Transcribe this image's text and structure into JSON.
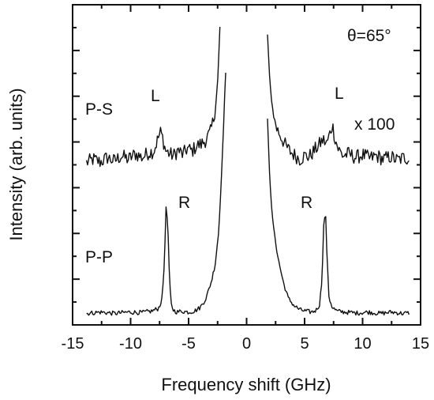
{
  "chart_data": {
    "type": "line",
    "title": "",
    "xlabel": "Frequency shift (GHz)",
    "ylabel": "Intensity (arb. units)",
    "xlim": [
      -15,
      15
    ],
    "ylim": [
      0,
      7
    ],
    "xticks": [
      -15,
      -10,
      -5,
      0,
      5,
      10,
      15
    ],
    "xtick_labels": [
      "-15",
      "-10",
      "-5",
      "0",
      "5",
      "10",
      "15"
    ],
    "grid": false,
    "legend": "none",
    "annotations": {
      "angle": "θ=65°",
      "ps_label": "P-S",
      "pp_label": "P-P",
      "scale": "x 100",
      "L_left": "L",
      "L_right": "L",
      "R_left": "R",
      "R_right": "R"
    },
    "series": [
      {
        "x": [
          -13.8,
          -13.2,
          -12.6,
          -12.0,
          -11.4,
          -10.8,
          -10.2,
          -9.6,
          -9.0,
          -8.5,
          -8.0,
          -7.8,
          -7.6,
          -7.4,
          -7.2,
          -7.0,
          -6.7,
          -6.3,
          -5.9,
          -5.5,
          -5.1,
          -4.7,
          -4.3,
          -3.9,
          -3.5,
          -3.1,
          -2.8,
          -2.5,
          -2.3
        ],
        "y": [
          3.55,
          3.62,
          3.56,
          3.66,
          3.58,
          3.7,
          3.62,
          3.74,
          3.66,
          3.76,
          3.8,
          3.95,
          4.1,
          4.22,
          4.05,
          3.82,
          3.75,
          3.7,
          3.82,
          3.72,
          3.86,
          3.8,
          3.92,
          3.95,
          4.05,
          4.22,
          4.55,
          5.25,
          6.5
        ]
      },
      {
        "x": [
          1.8,
          2.0,
          2.3,
          2.6,
          3.0,
          3.4,
          3.8,
          4.2,
          4.6,
          5.0,
          5.4,
          5.8,
          6.2,
          6.6,
          6.9,
          7.2,
          7.4,
          7.6,
          7.9,
          8.3,
          8.8,
          9.4,
          10.0,
          10.6,
          11.2,
          11.8,
          12.4,
          13.0,
          13.6,
          14.0
        ],
        "y": [
          6.35,
          5.3,
          4.6,
          4.3,
          4.1,
          3.9,
          3.78,
          3.7,
          3.62,
          3.7,
          3.68,
          3.8,
          3.92,
          4.05,
          3.95,
          4.2,
          4.38,
          4.1,
          3.85,
          3.7,
          3.74,
          3.66,
          3.72,
          3.64,
          3.7,
          3.62,
          3.68,
          3.6,
          3.66,
          3.64
        ]
      },
      {
        "x": [
          -13.8,
          -12.6,
          -11.4,
          -10.2,
          -9.0,
          -8.2,
          -7.6,
          -7.3,
          -7.1,
          -6.95,
          -6.8,
          -6.65,
          -6.5,
          -6.3,
          -6.0,
          -5.6,
          -5.0,
          -4.5,
          -4.0,
          -3.5,
          -3.0,
          -2.7,
          -2.4,
          -2.2,
          -2.0,
          -1.9,
          -1.8
        ],
        "y": [
          0.25,
          0.28,
          0.25,
          0.28,
          0.27,
          0.3,
          0.36,
          0.55,
          1.3,
          2.55,
          2.25,
          1.0,
          0.45,
          0.32,
          0.28,
          0.3,
          0.28,
          0.3,
          0.38,
          0.58,
          0.98,
          1.35,
          2.05,
          3.05,
          4.25,
          4.95,
          5.5
        ]
      },
      {
        "x": [
          1.8,
          2.0,
          2.2,
          2.5,
          2.8,
          3.2,
          3.6,
          4.1,
          4.6,
          5.1,
          5.6,
          6.0,
          6.3,
          6.5,
          6.65,
          6.8,
          6.95,
          7.1,
          7.4,
          7.8,
          8.5,
          9.5,
          10.5,
          11.5,
          12.5,
          13.5,
          14.0
        ],
        "y": [
          4.5,
          3.2,
          2.4,
          1.8,
          1.35,
          0.9,
          0.58,
          0.42,
          0.33,
          0.3,
          0.28,
          0.32,
          0.45,
          1.0,
          2.2,
          2.5,
          1.4,
          0.6,
          0.38,
          0.3,
          0.28,
          0.26,
          0.28,
          0.25,
          0.28,
          0.25,
          0.26
        ]
      }
    ]
  }
}
